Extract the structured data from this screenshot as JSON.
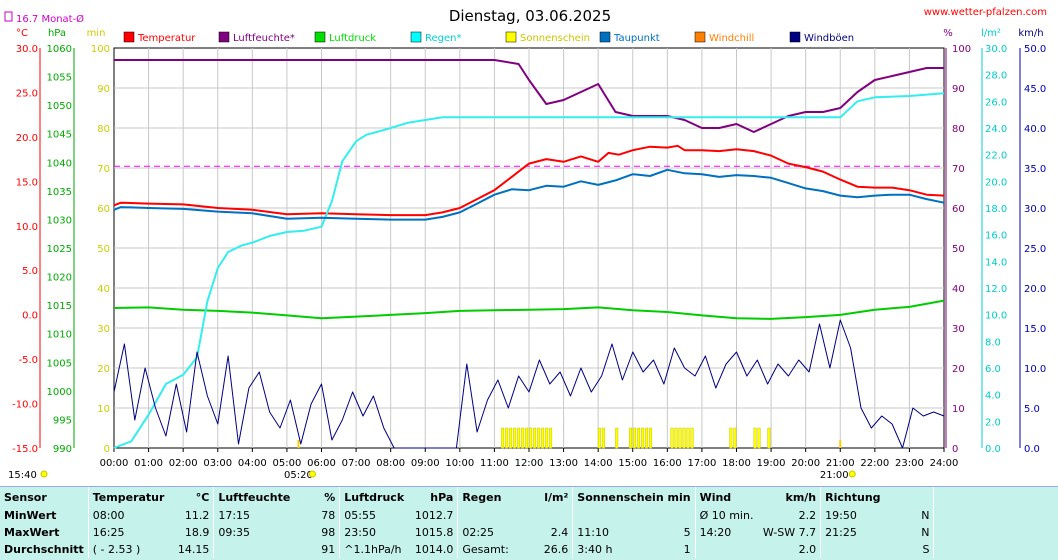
{
  "header": {
    "title": "Dienstag, 03.06.2025",
    "site": "www.wetter-pfalzen.com",
    "month_avg_label": "16.7 Monat-Ø"
  },
  "chart_data": {
    "type": "line",
    "title": "Dienstag, 03.06.2025",
    "x_ticks": [
      "00:00",
      "01:00",
      "02:00",
      "03:00",
      "04:00",
      "05:00",
      "06:00",
      "07:00",
      "08:00",
      "09:00",
      "10:00",
      "11:00",
      "12:00",
      "13:00",
      "14:00",
      "15:00",
      "16:00",
      "17:00",
      "18:00",
      "19:00",
      "20:00",
      "21:00",
      "22:00",
      "23:00",
      "24:00"
    ],
    "time_markers": {
      "left": "15:40",
      "sunrise": "05:20",
      "sunset": "21:00"
    },
    "axes": {
      "temperature": {
        "unit": "°C",
        "range": [
          -15,
          30
        ],
        "ticks": [
          "30.0",
          "25.0",
          "20.0",
          "15.0",
          "10.0",
          "5.0",
          "0.0",
          "-5.0",
          "-10.0",
          "-15.0"
        ],
        "color": "#ff0000"
      },
      "pressure": {
        "unit": "hPa",
        "range": [
          990,
          1060
        ],
        "ticks": [
          "1060",
          "1055",
          "1050",
          "1045",
          "1040",
          "1035",
          "1030",
          "1025",
          "1020",
          "1015",
          "1010",
          "1005",
          "1000",
          "995",
          "990"
        ],
        "color": "#00aa00"
      },
      "rain_minutes": {
        "unit": "min",
        "range": [
          0,
          100
        ],
        "ticks": [
          "100",
          "90",
          "80",
          "70",
          "60",
          "50",
          "40",
          "30",
          "20",
          "10",
          "0"
        ],
        "color": "#cccc00"
      },
      "humidity": {
        "unit": "%",
        "range": [
          0,
          100
        ],
        "ticks": [
          "100",
          "90",
          "80",
          "70",
          "60",
          "50",
          "40",
          "30",
          "20",
          "10",
          "0"
        ],
        "color": "#800080"
      },
      "rain": {
        "unit": "l/m²",
        "range": [
          0,
          30
        ],
        "ticks": [
          "30.0",
          "28.0",
          "26.0",
          "24.0",
          "22.0",
          "20.0",
          "18.0",
          "16.0",
          "14.0",
          "12.0",
          "10.0",
          "8.0",
          "6.0",
          "4.0",
          "2.0",
          "0.0"
        ],
        "color": "#00cccc"
      },
      "wind": {
        "unit": "km/h",
        "range": [
          0,
          50
        ],
        "ticks": [
          "50.0",
          "45.0",
          "40.0",
          "35.0",
          "30.0",
          "25.0",
          "20.0",
          "15.0",
          "10.0",
          "5.0",
          "0.0"
        ],
        "color": "#0000aa"
      }
    },
    "legend": [
      {
        "name": "Temperatur",
        "color": "#ff0000"
      },
      {
        "name": "Luftfeuchte*",
        "color": "#800080"
      },
      {
        "name": "Luftdruck",
        "color": "#00dd00"
      },
      {
        "name": "Regen*",
        "color": "#00ffff"
      },
      {
        "name": "Sonnenschein",
        "color": "#ffff00"
      },
      {
        "name": "Taupunkt",
        "color": "#0070c0"
      },
      {
        "name": "Windchill",
        "color": "#ff8000"
      },
      {
        "name": "Windböen",
        "color": "#000080"
      }
    ],
    "month_avg_temperature": 16.7,
    "series": [
      {
        "name": "Temperatur",
        "axis": "temperature",
        "color": "#ff0000",
        "x": [
          0,
          0.2,
          1,
          2,
          3,
          4,
          5,
          6,
          7,
          8,
          9,
          9.5,
          10,
          10.5,
          11,
          11.5,
          12,
          12.5,
          13,
          13.5,
          14,
          14.3,
          14.6,
          15,
          15.5,
          16,
          16.3,
          16.5,
          17,
          17.5,
          18,
          18.5,
          19,
          19.5,
          20,
          20.5,
          21,
          21.5,
          22,
          22.5,
          23,
          23.5,
          24
        ],
        "y": [
          12.3,
          12.6,
          12.5,
          12.4,
          12.0,
          11.8,
          11.3,
          11.4,
          11.3,
          11.2,
          11.2,
          11.5,
          12.0,
          13.0,
          14.0,
          15.5,
          17.0,
          17.5,
          17.2,
          17.8,
          17.2,
          18.2,
          18.0,
          18.5,
          18.9,
          18.8,
          19.0,
          18.5,
          18.5,
          18.4,
          18.6,
          18.4,
          17.9,
          17.0,
          16.6,
          16.1,
          15.2,
          14.4,
          14.3,
          14.3,
          14.0,
          13.5,
          13.4
        ]
      },
      {
        "name": "Luftfeuchte*",
        "axis": "humidity",
        "color": "#800080",
        "x": [
          0,
          1,
          2,
          3,
          4,
          5,
          6,
          7,
          8,
          9,
          10,
          10.5,
          11,
          11.7,
          12,
          12.5,
          13,
          13.5,
          14,
          14.5,
          15,
          15.5,
          16,
          16.5,
          17,
          17.5,
          18,
          18.5,
          19,
          19.5,
          20,
          20.5,
          21,
          21.5,
          22,
          22.5,
          23,
          23.5,
          24
        ],
        "y": [
          97,
          97,
          97,
          97,
          97,
          97,
          97,
          97,
          97,
          97,
          97,
          97,
          97,
          96,
          92,
          86,
          87,
          89,
          91,
          84,
          83,
          83,
          83,
          82,
          80,
          80,
          81,
          79,
          81,
          83,
          84,
          84,
          85,
          89,
          92,
          93,
          94,
          95,
          95
        ]
      },
      {
        "name": "Luftdruck",
        "axis": "pressure",
        "color": "#00cc00",
        "x": [
          0,
          1,
          2,
          3,
          4,
          5,
          6,
          7,
          8,
          9,
          10,
          11,
          12,
          13,
          14,
          15,
          16,
          17,
          18,
          19,
          20,
          21,
          22,
          23,
          24
        ],
        "y": [
          1014.5,
          1014.6,
          1014.2,
          1014.0,
          1013.7,
          1013.2,
          1012.7,
          1013.0,
          1013.3,
          1013.6,
          1014.0,
          1014.1,
          1014.2,
          1014.3,
          1014.6,
          1014.1,
          1013.8,
          1013.2,
          1012.7,
          1012.6,
          1012.9,
          1013.3,
          1014.2,
          1014.7,
          1015.8
        ]
      },
      {
        "name": "Regen*",
        "axis": "rain",
        "color": "#33eeee",
        "x": [
          0,
          0.5,
          1,
          1.5,
          2,
          2.4,
          2.7,
          3,
          3.3,
          3.7,
          4,
          4.5,
          5,
          5.5,
          6,
          6.3,
          6.6,
          7,
          7.3,
          7.6,
          8,
          8.5,
          9,
          9.5,
          10,
          11,
          12,
          13,
          14,
          15,
          16,
          17,
          18,
          19,
          20,
          20.6,
          21,
          21.5,
          22,
          23,
          24
        ],
        "y": [
          0,
          0.5,
          2.5,
          4.8,
          5.5,
          6.8,
          11,
          13.5,
          14.7,
          15.2,
          15.4,
          15.9,
          16.2,
          16.3,
          16.6,
          18.5,
          21.5,
          23.0,
          23.5,
          23.7,
          24.0,
          24.4,
          24.6,
          24.8,
          24.8,
          24.8,
          24.8,
          24.8,
          24.8,
          24.8,
          24.8,
          24.8,
          24.8,
          24.8,
          24.8,
          24.8,
          24.8,
          26.0,
          26.3,
          26.4,
          26.6
        ]
      },
      {
        "name": "Taupunkt",
        "axis": "temperature",
        "color": "#0070c0",
        "x": [
          0,
          0.2,
          1,
          2,
          3,
          4,
          5,
          6,
          7,
          8,
          9,
          9.5,
          10,
          10.5,
          11,
          11.5,
          12,
          12.5,
          13,
          13.5,
          14,
          14.5,
          15,
          15.5,
          16,
          16.5,
          17,
          17.5,
          18,
          18.5,
          19,
          19.5,
          20,
          20.5,
          21,
          21.5,
          22,
          22.5,
          23,
          23.5,
          24
        ],
        "y": [
          11.8,
          12.1,
          12.0,
          11.9,
          11.6,
          11.4,
          10.8,
          10.9,
          10.8,
          10.7,
          10.7,
          11.0,
          11.5,
          12.5,
          13.5,
          14.1,
          14.0,
          14.5,
          14.4,
          15.0,
          14.6,
          15.1,
          15.8,
          15.6,
          16.3,
          15.9,
          15.8,
          15.5,
          15.7,
          15.6,
          15.4,
          14.8,
          14.2,
          13.9,
          13.4,
          13.2,
          13.4,
          13.5,
          13.5,
          13.0,
          12.6
        ]
      },
      {
        "name": "Windböen",
        "axis": "wind",
        "color": "#000080",
        "x": [
          0,
          0.3,
          0.6,
          0.9,
          1.2,
          1.5,
          1.8,
          2.1,
          2.4,
          2.7,
          3.0,
          3.3,
          3.6,
          3.9,
          4.2,
          4.5,
          4.8,
          5.1,
          5.4,
          5.7,
          6.0,
          6.3,
          6.6,
          6.9,
          7.2,
          7.5,
          7.8,
          8.1,
          8.4,
          8.7,
          9.0,
          9.3,
          9.6,
          9.9,
          10.2,
          10.5,
          10.8,
          11.1,
          11.4,
          11.7,
          12.0,
          12.3,
          12.6,
          12.9,
          13.2,
          13.5,
          13.8,
          14.1,
          14.4,
          14.7,
          15.0,
          15.3,
          15.6,
          15.9,
          16.2,
          16.5,
          16.8,
          17.1,
          17.4,
          17.7,
          18.0,
          18.3,
          18.6,
          18.9,
          19.2,
          19.5,
          19.8,
          20.1,
          20.4,
          20.7,
          21.0,
          21.3,
          21.6,
          21.9,
          22.2,
          22.5,
          22.8,
          23.1,
          23.4,
          23.7,
          24.0
        ],
        "y": [
          7.0,
          13.0,
          3.5,
          10.0,
          5.0,
          1.5,
          8.0,
          2.0,
          12.0,
          6.5,
          3.0,
          11.5,
          0.5,
          7.5,
          9.5,
          4.5,
          2.5,
          6.0,
          0.5,
          5.5,
          8.0,
          1.0,
          3.5,
          7.0,
          4.0,
          6.5,
          2.5,
          0,
          0,
          0,
          0,
          0,
          0,
          0,
          10.5,
          2.0,
          6.0,
          8.5,
          5.0,
          9.0,
          7.0,
          11.0,
          8.0,
          9.5,
          6.5,
          10.0,
          7.0,
          9.0,
          13.0,
          8.5,
          12.0,
          9.5,
          11.0,
          8.0,
          12.5,
          10.0,
          9.0,
          11.5,
          7.5,
          10.5,
          12.0,
          9.0,
          11.0,
          8.0,
          10.5,
          9.0,
          11.0,
          9.5,
          15.5,
          10.0,
          16.0,
          12.5,
          5.0,
          2.5,
          4.0,
          3.0,
          0,
          5.0,
          4.0,
          4.5,
          4.0
        ]
      }
    ],
    "sunshine_intervals": [
      [
        11.2,
        12.6
      ],
      [
        14.0,
        14.2
      ],
      [
        14.5,
        14.6
      ],
      [
        14.9,
        15.5
      ],
      [
        16.1,
        16.7
      ],
      [
        17.8,
        18.0
      ],
      [
        18.5,
        18.7
      ],
      [
        18.9,
        19.0
      ]
    ]
  },
  "stats": {
    "headers": {
      "sensor": "Sensor",
      "temp": "Temperatur",
      "temp_unit": "°C",
      "hum": "Luftfeuchte",
      "hum_unit": "%",
      "press": "Luftdruck",
      "press_unit": "hPa",
      "rain": "Regen",
      "rain_unit": "l/m²",
      "sun": "Sonnenschein min",
      "wind": "Wind",
      "wind_unit": "km/h",
      "dir": "Richtung"
    },
    "min": {
      "label": "MinWert",
      "temp_time": "08:00",
      "temp_val": "11.2",
      "hum_time": "17:15",
      "hum_val": "78",
      "press_time": "05:55",
      "press_val": "1012.7",
      "wind_time": "Ø 10 min.",
      "wind_val": "2.2",
      "dir_time": "19:50",
      "dir_val": "N"
    },
    "max": {
      "label": "MaxWert",
      "temp_time": "16:25",
      "temp_val": "18.9",
      "hum_time": "09:35",
      "hum_val": "98",
      "press_time": "23:50",
      "press_val": "1015.8",
      "rain_time": "02:25",
      "rain_val": "2.4",
      "sun_time": "11:10",
      "sun_val": "5",
      "wind_time": "14:20",
      "wind_val": "W-SW 7.7",
      "dir_time": "21:25",
      "dir_val": "N"
    },
    "avg": {
      "label": "Durchschnitt",
      "temp_time": "( - 2.53 )",
      "temp_val": "14.15",
      "hum_val": "91",
      "press_time": "^1.1hPa/h",
      "press_val": "1014.0",
      "rain_time": "Gesamt:",
      "rain_val": "26.6",
      "sun_time": "3:40 h",
      "sun_val": "1",
      "wind_val": "2.0",
      "dir_val": "S"
    }
  }
}
